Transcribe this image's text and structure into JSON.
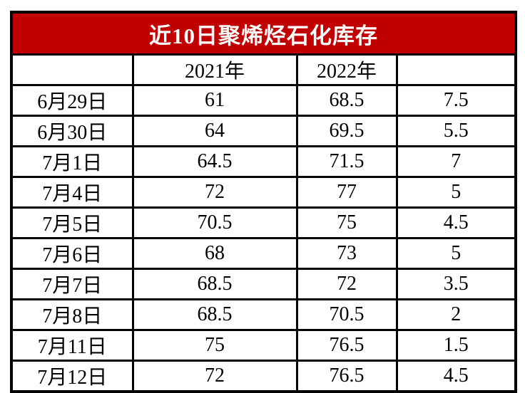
{
  "title": "近10日聚烯烃石化库存",
  "colors": {
    "title_bg": "#c00000",
    "title_text": "#ffffff",
    "border": "#000000",
    "cell_bg": "#ffffff",
    "cell_text": "#000000"
  },
  "table": {
    "columns": [
      "",
      "2021年",
      "2022年",
      ""
    ],
    "rows": [
      {
        "date": "6月29日",
        "y2021": "61",
        "y2022": "68.5",
        "diff": "7.5"
      },
      {
        "date": "6月30日",
        "y2021": "64",
        "y2022": "69.5",
        "diff": "5.5"
      },
      {
        "date": "7月1日",
        "y2021": "64.5",
        "y2022": "71.5",
        "diff": "7"
      },
      {
        "date": "7月4日",
        "y2021": "72",
        "y2022": "77",
        "diff": "5"
      },
      {
        "date": "7月5日",
        "y2021": "70.5",
        "y2022": "75",
        "diff": "4.5"
      },
      {
        "date": "7月6日",
        "y2021": "68",
        "y2022": "73",
        "diff": "5"
      },
      {
        "date": "7月7日",
        "y2021": "68.5",
        "y2022": "72",
        "diff": "3.5"
      },
      {
        "date": "7月8日",
        "y2021": "68.5",
        "y2022": "70.5",
        "diff": "2"
      },
      {
        "date": "7月11日",
        "y2021": "75",
        "y2022": "76.5",
        "diff": "1.5"
      },
      {
        "date": "7月12日",
        "y2021": "72",
        "y2022": "76.5",
        "diff": "4.5"
      }
    ]
  },
  "chart_data": {
    "type": "table",
    "title": "近10日聚烯烃石化库存",
    "categories": [
      "6月29日",
      "6月30日",
      "7月1日",
      "7月4日",
      "7月5日",
      "7月6日",
      "7月7日",
      "7月8日",
      "7月11日",
      "7月12日"
    ],
    "series": [
      {
        "name": "2021年",
        "values": [
          61,
          64,
          64.5,
          72,
          70.5,
          68,
          68.5,
          68.5,
          75,
          72
        ]
      },
      {
        "name": "2022年",
        "values": [
          68.5,
          69.5,
          71.5,
          77,
          75,
          73,
          72,
          70.5,
          76.5,
          76.5
        ]
      },
      {
        "name": "",
        "values": [
          7.5,
          5.5,
          7,
          5,
          4.5,
          5,
          3.5,
          2,
          1.5,
          4.5
        ]
      }
    ]
  }
}
